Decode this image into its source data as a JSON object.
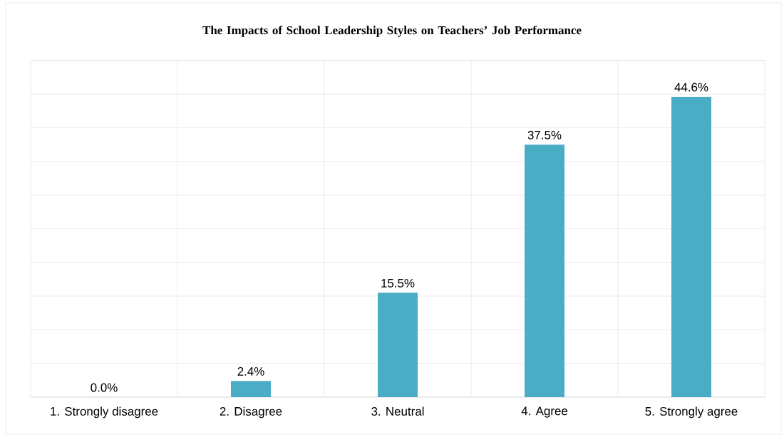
{
  "chart_data": {
    "type": "bar",
    "title": "The Impacts of School Leadership Styles on Teachers’ Job Performance",
    "categories": [
      "1. Strongly disagree",
      "2. Disagree",
      "3. Neutral",
      "4. Agree",
      "5. Strongly agree"
    ],
    "values": [
      0,
      2.4,
      15.5,
      37.5,
      44.6
    ],
    "value_labels": [
      "0.0%",
      "2.4%",
      "15.5%",
      "37.5%",
      "44.6%"
    ],
    "color": "#4bacc6",
    "ylim": [
      0,
      50
    ],
    "yticks": [
      {
        "value": 0,
        "label": null
      },
      {
        "value": 5,
        "label": null
      },
      {
        "value": 10,
        "label": null
      },
      {
        "value": 15,
        "label": null
      },
      {
        "value": 20,
        "label": null
      },
      {
        "value": 25,
        "label": null
      },
      {
        "value": 30,
        "label": null
      },
      {
        "value": 35,
        "label": null
      },
      {
        "value": 40,
        "label": null
      },
      {
        "value": 45,
        "label": null
      },
      {
        "value": 50,
        "label": null
      }
    ],
    "tick_labels": "x",
    "grid": true
  }
}
